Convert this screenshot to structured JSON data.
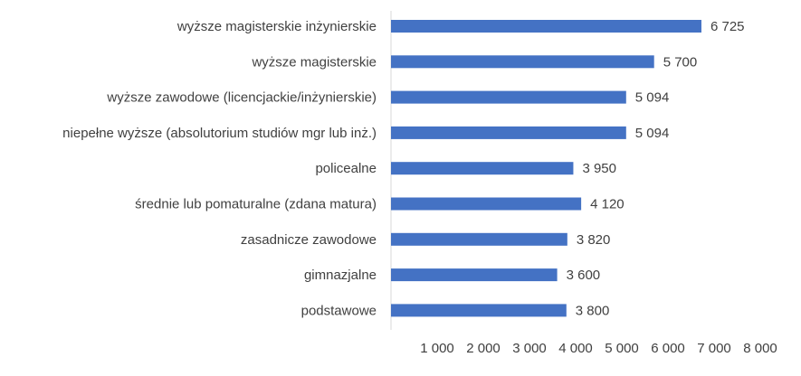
{
  "chart_data": {
    "type": "bar",
    "orientation": "horizontal",
    "categories": [
      "wyższe magisterskie inżynierskie",
      "wyższe magisterskie",
      "wyższe zawodowe (licencjackie/inżynierskie)",
      "niepełne wyższe (absolutorium studiów mgr lub inż.)",
      "policealne",
      "średnie lub pomaturalne (zdana matura)",
      "zasadnicze zawodowe",
      "gimnazjalne",
      "podstawowe"
    ],
    "values": [
      6725,
      5700,
      5094,
      5094,
      3950,
      4120,
      3820,
      3600,
      3800
    ],
    "value_labels": [
      "6 725",
      "5 700",
      "5 094",
      "5 094",
      "3 950",
      "4 120",
      "3 820",
      "3 600",
      "3 800"
    ],
    "x_ticks": [
      1000,
      2000,
      3000,
      4000,
      5000,
      6000,
      7000,
      8000
    ],
    "x_tick_labels": [
      "1 000",
      "2 000",
      "3 000",
      "4 000",
      "5 000",
      "6 000",
      "7 000",
      "8 000"
    ],
    "xlim": [
      0,
      8000
    ],
    "grid": false,
    "legend": "none",
    "colors": {
      "bar": "#4472C4",
      "text": "#404040",
      "axis": "#D9D9D9"
    }
  }
}
